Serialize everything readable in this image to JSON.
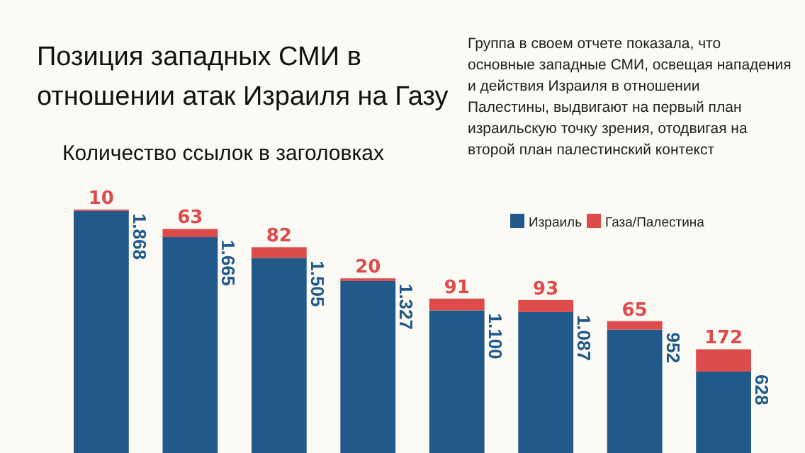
{
  "chart_data": {
    "type": "bar",
    "title": "Позиция западных СМИ в отношении атак Израиля на Газу",
    "subtitle": "Количество ссылок в заголовках",
    "annotations": [
      "Группа в своем отчете показала, что основные западные СМИ, освещая нападения и действия Израиля в отношении Палестины, выдвигают на первый план израильскую точку зрения, отодвигая на второй план палестинский контекст"
    ],
    "categories": [
      null,
      null,
      null,
      null,
      null,
      null,
      null,
      null
    ],
    "stacked": true,
    "legend": "top right",
    "series": [
      {
        "name": "Израиль",
        "color": "#215a8a",
        "values": [
          1868,
          1665,
          1505,
          1327,
          1100,
          1087,
          952,
          628
        ],
        "value_labels": [
          "1.868",
          "1.665",
          "1.505",
          "1.327",
          "1.100",
          "1.087",
          "952",
          "628"
        ]
      },
      {
        "name": "Газа/Палестина",
        "color": "#dd4b4b",
        "values": [
          10,
          63,
          82,
          20,
          91,
          93,
          65,
          172
        ],
        "value_labels": [
          "10",
          "63",
          "82",
          "20",
          "91",
          "93",
          "65",
          "172"
        ]
      }
    ]
  }
}
